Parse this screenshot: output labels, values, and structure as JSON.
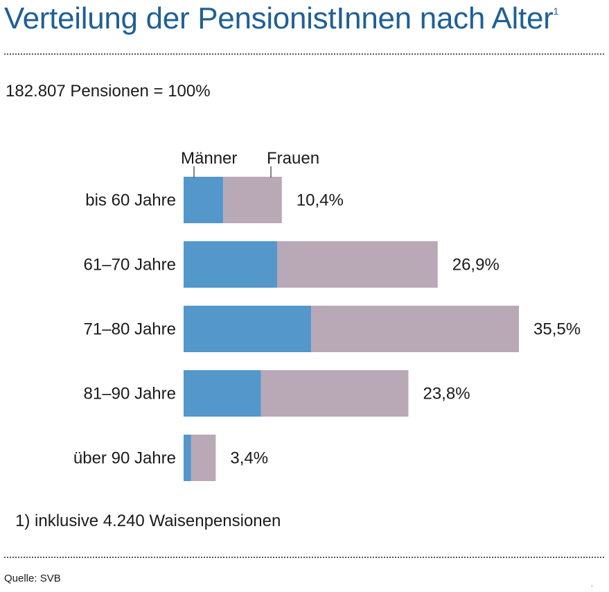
{
  "header": {
    "title": "Verteilung der PensionistInnen nach Alter",
    "title_main": "Verteilung der PensionistInnen nach Alter",
    "footnote_marker": "1"
  },
  "summary": {
    "total": "182.807 Pensionen = 100%"
  },
  "footnote": "1) inklusive 4.240 Waisenpensionen",
  "source": "Quelle: SVB",
  "corner_mark": ".",
  "colors": {
    "title": "#1f5f96",
    "maenner": "#5497cb",
    "frauen": "#b9a8b6"
  },
  "chart_data": {
    "type": "bar",
    "orientation": "horizontal",
    "stacked": true,
    "title": "Verteilung der PensionistInnen nach Alter",
    "categories": [
      "bis 60 Jahre",
      "61–70 Jahre",
      "71–80 Jahre",
      "81–90 Jahre",
      "über 90 Jahre"
    ],
    "series": [
      {
        "name": "Männer",
        "values": [
          4.2,
          9.9,
          13.5,
          8.2,
          0.8
        ]
      },
      {
        "name": "Frauen",
        "values": [
          6.2,
          17.0,
          22.0,
          15.6,
          2.6
        ]
      }
    ],
    "total_labels": [
      "10,4%",
      "26,9%",
      "35,5%",
      "23,8%",
      "3,4%"
    ],
    "legend": {
      "placement": "top",
      "entries": [
        "Männer",
        "Frauen"
      ]
    },
    "unit": "%",
    "xlim": [
      0,
      35.5
    ],
    "grid": false
  }
}
